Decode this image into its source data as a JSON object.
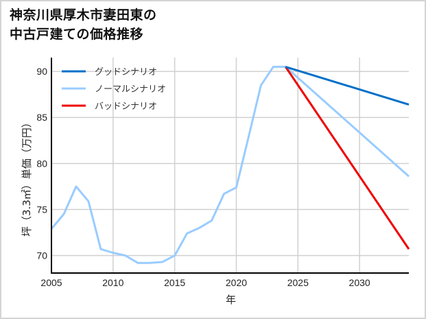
{
  "title": {
    "line1": "神奈川県厚木市妻田東の",
    "line2": "中古戸建ての価格推移"
  },
  "colors": {
    "good": "#0070c8",
    "normal": "#99ccff",
    "bad": "#ee0000",
    "grid": "#d0d0d0",
    "axis": "#000000"
  },
  "chart_data": {
    "type": "line",
    "title": "神奈川県厚木市妻田東の中古戸建ての価格推移",
    "xlabel": "年",
    "ylabel": "坪（3.3㎡）単価（万円）",
    "xlim": [
      2005,
      2034
    ],
    "ylim": [
      68.1,
      91.5
    ],
    "x_ticks": [
      2005,
      2010,
      2015,
      2020,
      2025,
      2030
    ],
    "y_ticks": [
      70,
      75,
      80,
      85,
      90
    ],
    "grid": true,
    "legend_position": "upper left",
    "series": [
      {
        "name": "グッドシナリオ",
        "color": "#0070c8",
        "x": [
          2024,
          2034
        ],
        "values": [
          90.5,
          86.4
        ]
      },
      {
        "name": "ノーマルシナリオ",
        "color": "#99ccff",
        "x": [
          2005,
          2006,
          2007,
          2008,
          2009,
          2010,
          2011,
          2012,
          2013,
          2014,
          2015,
          2016,
          2017,
          2018,
          2019,
          2020,
          2021,
          2022,
          2023,
          2024,
          2034
        ],
        "values": [
          72.9,
          74.5,
          77.5,
          75.9,
          70.7,
          70.3,
          70.0,
          69.2,
          69.2,
          69.3,
          70.0,
          72.4,
          73.0,
          73.8,
          76.7,
          77.4,
          82.9,
          88.5,
          90.5,
          90.5,
          78.6
        ]
      },
      {
        "name": "バッドシナリオ",
        "color": "#ee0000",
        "x": [
          2024,
          2034
        ],
        "values": [
          90.5,
          70.7
        ]
      }
    ]
  }
}
